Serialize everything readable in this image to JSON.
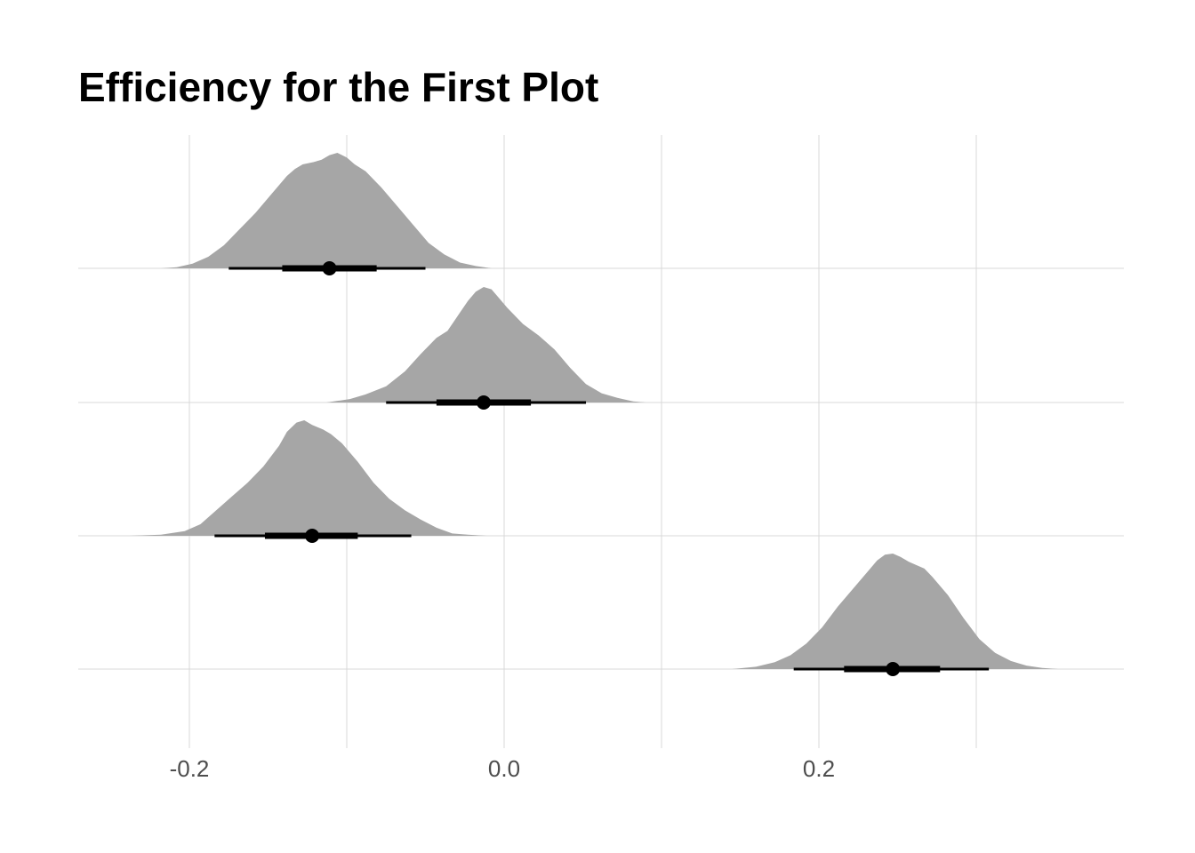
{
  "chart_data": {
    "type": "halfeye",
    "title": "Efficiency for the First Plot",
    "xlabel": "",
    "ylabel": "",
    "xlim": [
      -0.2,
      0.35
    ],
    "x_ticks": [
      -0.2,
      0.0,
      0.2
    ],
    "x_tick_labels": [
      "-0.2",
      "0.0",
      "0.2"
    ],
    "x_minor_gridlines": [
      -0.1,
      0.1,
      0.3
    ],
    "grid": true,
    "colors": {
      "density_fill": "#a6a6a6",
      "interval": "#000000",
      "grid": "#d9d9d9"
    },
    "series": [
      {
        "median": -0.111,
        "interval_66": [
          -0.141,
          -0.081
        ],
        "interval_95": [
          -0.175,
          -0.05
        ],
        "density": {
          "x": [
            -0.218,
            -0.208,
            -0.198,
            -0.188,
            -0.178,
            -0.168,
            -0.158,
            -0.148,
            -0.138,
            -0.133,
            -0.128,
            -0.121,
            -0.116,
            -0.111,
            -0.106,
            -0.1,
            -0.095,
            -0.088,
            -0.078,
            -0.068,
            -0.058,
            -0.048,
            -0.038,
            -0.028,
            -0.018,
            -0.008
          ],
          "y": [
            0.0,
            0.01,
            0.04,
            0.1,
            0.2,
            0.34,
            0.48,
            0.64,
            0.8,
            0.86,
            0.9,
            0.92,
            0.94,
            0.98,
            1.0,
            0.96,
            0.9,
            0.84,
            0.7,
            0.54,
            0.38,
            0.22,
            0.12,
            0.05,
            0.02,
            0.0
          ]
        }
      },
      {
        "median": -0.013,
        "interval_66": [
          -0.043,
          0.017
        ],
        "interval_95": [
          -0.075,
          0.052
        ],
        "density": {
          "x": [
            -0.113,
            -0.098,
            -0.088,
            -0.075,
            -0.063,
            -0.053,
            -0.043,
            -0.036,
            -0.028,
            -0.023,
            -0.018,
            -0.013,
            -0.008,
            -0.003,
            0.002,
            0.012,
            0.022,
            0.032,
            0.042,
            0.052,
            0.062,
            0.072,
            0.082,
            0.09
          ],
          "y": [
            0.0,
            0.03,
            0.07,
            0.14,
            0.27,
            0.42,
            0.56,
            0.62,
            0.78,
            0.88,
            0.96,
            1.0,
            0.98,
            0.9,
            0.82,
            0.68,
            0.58,
            0.46,
            0.3,
            0.16,
            0.08,
            0.04,
            0.01,
            0.0
          ]
        }
      },
      {
        "median": -0.122,
        "interval_66": [
          -0.152,
          -0.093
        ],
        "interval_95": [
          -0.184,
          -0.059
        ],
        "density": {
          "x": [
            -0.238,
            -0.218,
            -0.203,
            -0.193,
            -0.183,
            -0.173,
            -0.163,
            -0.153,
            -0.143,
            -0.138,
            -0.132,
            -0.127,
            -0.122,
            -0.115,
            -0.11,
            -0.103,
            -0.093,
            -0.083,
            -0.073,
            -0.063,
            -0.053,
            -0.043,
            -0.033,
            -0.023,
            -0.011
          ],
          "y": [
            0.0,
            0.01,
            0.04,
            0.1,
            0.22,
            0.34,
            0.46,
            0.6,
            0.78,
            0.9,
            0.98,
            1.0,
            0.96,
            0.92,
            0.88,
            0.8,
            0.64,
            0.46,
            0.32,
            0.22,
            0.14,
            0.07,
            0.02,
            0.01,
            0.0
          ]
        }
      },
      {
        "median": 0.247,
        "interval_66": [
          0.216,
          0.277
        ],
        "interval_95": [
          0.184,
          0.308
        ],
        "density": {
          "x": [
            0.145,
            0.16,
            0.172,
            0.182,
            0.192,
            0.202,
            0.212,
            0.222,
            0.232,
            0.237,
            0.242,
            0.247,
            0.252,
            0.257,
            0.262,
            0.267,
            0.272,
            0.282,
            0.292,
            0.302,
            0.312,
            0.322,
            0.332,
            0.342,
            0.352
          ],
          "y": [
            0.0,
            0.02,
            0.06,
            0.12,
            0.22,
            0.36,
            0.54,
            0.7,
            0.86,
            0.94,
            0.99,
            1.0,
            0.97,
            0.93,
            0.9,
            0.87,
            0.8,
            0.64,
            0.44,
            0.26,
            0.14,
            0.07,
            0.03,
            0.01,
            0.0
          ]
        }
      }
    ]
  }
}
